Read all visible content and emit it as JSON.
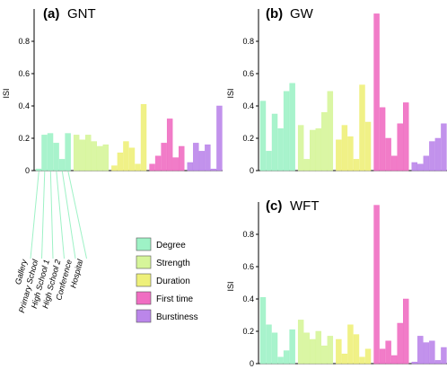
{
  "colors": {
    "Degree": "#9ef2c6",
    "Strength": "#d6f59a",
    "Duration": "#eef07a",
    "First time": "#f06ec2",
    "Burstiness": "#bb86ea"
  },
  "legend": [
    "Degree",
    "Strength",
    "Duration",
    "First time",
    "Burstiness"
  ],
  "category_labels": [
    "Gallery",
    "Primary School",
    "High School 1",
    "High School 2",
    "Conference",
    "Hospital"
  ],
  "chart_data": [
    {
      "type": "bar",
      "panel_letter": "(a)",
      "panel_name": "GNT",
      "ylabel": "ISI",
      "ylim": [
        0,
        1.0
      ],
      "yticks": [
        "0",
        "0.2",
        "0.4",
        "0.6",
        "0.8"
      ],
      "categories": [
        "Gallery",
        "Primary School",
        "High School 1",
        "High School 2",
        "Conference",
        "Hospital"
      ],
      "series": [
        {
          "name": "Degree",
          "values": [
            0.01,
            0.22,
            0.23,
            0.17,
            0.07,
            0.23
          ]
        },
        {
          "name": "Strength",
          "values": [
            0.22,
            0.19,
            0.22,
            0.18,
            0.15,
            0.16
          ]
        },
        {
          "name": "Duration",
          "values": [
            0.03,
            0.11,
            0.18,
            0.14,
            0.04,
            0.41
          ]
        },
        {
          "name": "First time",
          "values": [
            0.04,
            0.09,
            0.17,
            0.32,
            0.08,
            0.15
          ]
        },
        {
          "name": "Burstiness",
          "values": [
            0.05,
            0.17,
            0.12,
            0.16,
            0.01,
            0.4
          ]
        }
      ]
    },
    {
      "type": "bar",
      "panel_letter": "(b)",
      "panel_name": "GW",
      "ylabel": "ISI",
      "ylim": [
        0,
        1.0
      ],
      "yticks": [
        "0",
        "0.2",
        "0.4",
        "0.6",
        "0.8"
      ],
      "categories": [
        "Gallery",
        "Primary School",
        "High School 1",
        "High School 2",
        "Conference",
        "Hospital"
      ],
      "series": [
        {
          "name": "Degree",
          "values": [
            0.43,
            0.12,
            0.35,
            0.26,
            0.49,
            0.54
          ]
        },
        {
          "name": "Strength",
          "values": [
            0.28,
            0.07,
            0.25,
            0.26,
            0.36,
            0.49
          ]
        },
        {
          "name": "Duration",
          "values": [
            0.19,
            0.28,
            0.21,
            0.07,
            0.53,
            0.3
          ]
        },
        {
          "name": "First time",
          "values": [
            0.97,
            0.39,
            0.2,
            0.09,
            0.29,
            0.42
          ]
        },
        {
          "name": "Burstiness",
          "values": [
            0.05,
            0.04,
            0.09,
            0.18,
            0.2,
            0.29
          ]
        }
      ]
    },
    {
      "type": "bar",
      "panel_letter": "(c)",
      "panel_name": "WFT",
      "ylabel": "ISI",
      "ylim": [
        0,
        1.0
      ],
      "yticks": [
        "0",
        "0.2",
        "0.4",
        "0.6",
        "0.8"
      ],
      "categories": [
        "Gallery",
        "Primary School",
        "High School 1",
        "High School 2",
        "Conference",
        "Hospital"
      ],
      "series": [
        {
          "name": "Degree",
          "values": [
            0.41,
            0.24,
            0.19,
            0.04,
            0.08,
            0.21
          ]
        },
        {
          "name": "Strength",
          "values": [
            0.27,
            0.19,
            0.15,
            0.2,
            0.11,
            0.17
          ]
        },
        {
          "name": "Duration",
          "values": [
            0.15,
            0.06,
            0.24,
            0.18,
            0.04,
            0.09
          ]
        },
        {
          "name": "First time",
          "values": [
            0.98,
            0.09,
            0.14,
            0.05,
            0.25,
            0.4
          ]
        },
        {
          "name": "Burstiness",
          "values": [
            0.01,
            0.17,
            0.13,
            0.14,
            0.02,
            0.1
          ]
        }
      ]
    }
  ]
}
